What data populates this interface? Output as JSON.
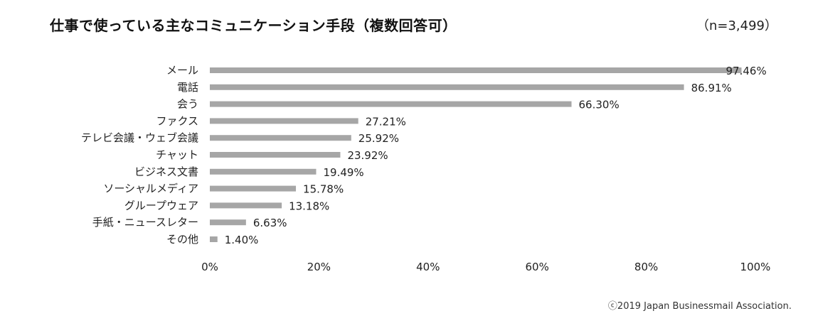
{
  "title": "仕事で使っている主なコミュニケーション手段（複数回答可）",
  "sample_note": "（n=3,499）",
  "copyright": "ⓒ2019 Japan Businessmail Association.",
  "chart_data": {
    "type": "bar",
    "orientation": "horizontal",
    "title": "仕事で使っている主なコミュニケーション手段（複数回答可）",
    "categories": [
      "メール",
      "電話",
      "会う",
      "ファクス",
      "テレビ会議・ウェブ会議",
      "チャット",
      "ビジネス文書",
      "ソーシャルメディア",
      "グループウェア",
      "手紙・ニュースレター",
      "その他"
    ],
    "values": [
      97.46,
      86.91,
      66.3,
      27.21,
      25.92,
      23.92,
      19.49,
      15.78,
      13.18,
      6.63,
      1.4
    ],
    "value_labels": [
      "97.46%",
      "86.91%",
      "66.30%",
      "27.21%",
      "25.92%",
      "23.92%",
      "19.49%",
      "15.78%",
      "13.18%",
      "6.63%",
      "1.40%"
    ],
    "xlim": [
      0,
      100
    ],
    "xticks": [
      "0%",
      "20%",
      "40%",
      "60%",
      "80%",
      "100%"
    ],
    "grid": false,
    "bar_color": "#a6a6a6"
  }
}
